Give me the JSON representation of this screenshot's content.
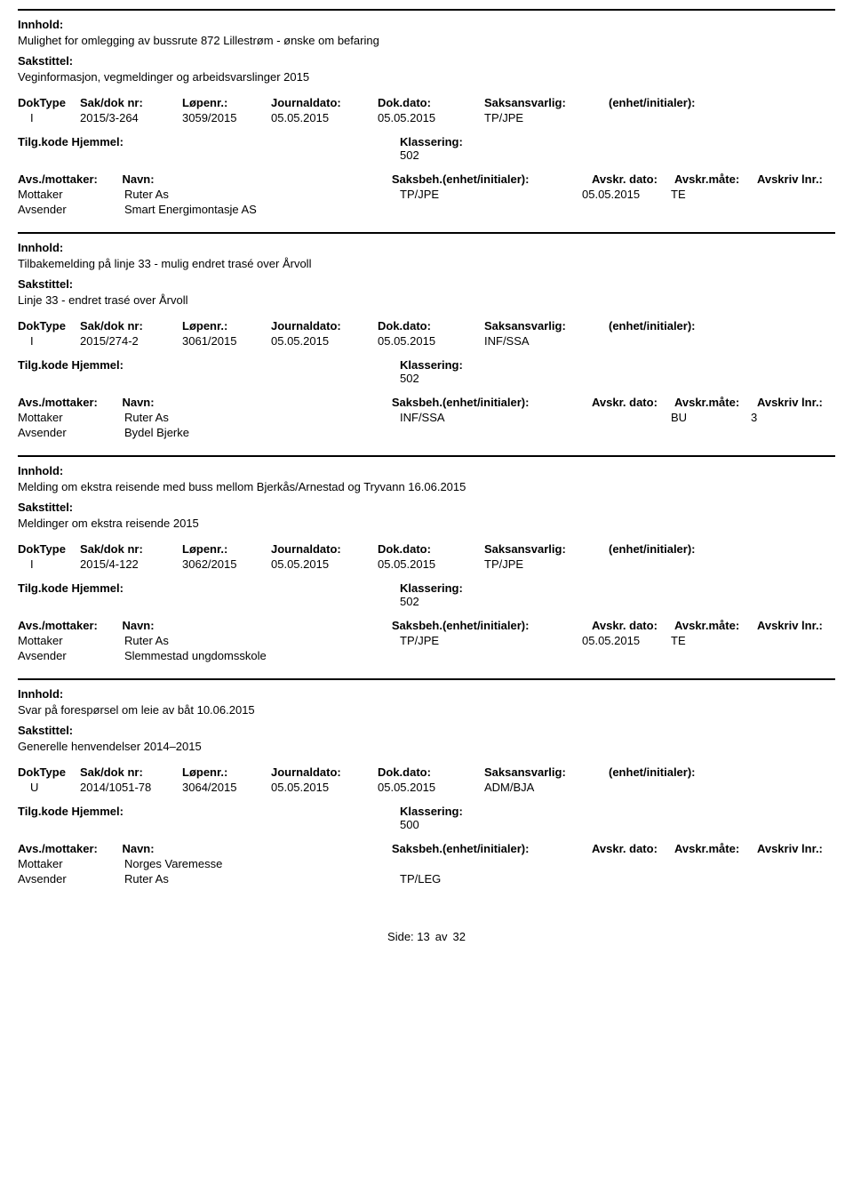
{
  "labels": {
    "innhold": "Innhold:",
    "sakstittel": "Sakstittel:",
    "doktype": "DokType",
    "saknr": "Sak/dok nr:",
    "lopenr": "Løpenr.:",
    "journaldato": "Journaldato:",
    "dokdato": "Dok.dato:",
    "saksansvarlig": "Saksansvarlig:",
    "enhet_init": "(enhet/initialer):",
    "tilgkode": "Tilg.kode",
    "hjemmel": "Hjemmel:",
    "klassering": "Klassering:",
    "avs_mottaker": "Avs./mottaker:",
    "navn": "Navn:",
    "saksbeh": "Saksbeh.(enhet/initialer):",
    "avskr_dato": "Avskr. dato:",
    "avskr_mate": "Avskr.måte:",
    "avskriv_lnr": "Avskriv lnr.:",
    "mottaker": "Mottaker",
    "avsender": "Avsender",
    "side": "Side:",
    "av": "av"
  },
  "records": [
    {
      "innhold": "Mulighet for omlegging av bussrute 872 Lillestrøm - ønske om befaring",
      "sakstittel": "Veginformasjon, vegmeldinger og arbeidsvarslinger 2015",
      "doktype": "I",
      "saknr": "2015/3-264",
      "lopenr": "3059/2015",
      "journaldato": "05.05.2015",
      "dokdato": "05.05.2015",
      "saksansvarlig": "TP/JPE",
      "enhet_init": "",
      "tilgkode": "",
      "hjemmel": "",
      "klassering": "502",
      "parties": [
        {
          "role": "Mottaker",
          "navn": "Ruter As",
          "saksbeh": "TP/JPE",
          "avskr_dato": "05.05.2015",
          "avskr_mate": "TE",
          "avskr_lnr": ""
        },
        {
          "role": "Avsender",
          "navn": "Smart Energimontasje AS",
          "saksbeh": "",
          "avskr_dato": "",
          "avskr_mate": "",
          "avskr_lnr": ""
        }
      ]
    },
    {
      "innhold": "Tilbakemelding på linje 33 - mulig endret trasé over Årvoll",
      "sakstittel": "Linje 33 - endret trasé over Årvoll",
      "doktype": "I",
      "saknr": "2015/274-2",
      "lopenr": "3061/2015",
      "journaldato": "05.05.2015",
      "dokdato": "05.05.2015",
      "saksansvarlig": "INF/SSA",
      "enhet_init": "",
      "tilgkode": "",
      "hjemmel": "",
      "klassering": "502",
      "parties": [
        {
          "role": "Mottaker",
          "navn": "Ruter As",
          "saksbeh": "INF/SSA",
          "avskr_dato": "",
          "avskr_mate": "BU",
          "avskr_lnr": "3"
        },
        {
          "role": "Avsender",
          "navn": "Bydel Bjerke",
          "saksbeh": "",
          "avskr_dato": "",
          "avskr_mate": "",
          "avskr_lnr": ""
        }
      ]
    },
    {
      "innhold": "Melding om ekstra reisende med buss mellom Bjerkås/Arnestad og Tryvann 16.06.2015",
      "sakstittel": "Meldinger om ekstra reisende 2015",
      "doktype": "I",
      "saknr": "2015/4-122",
      "lopenr": "3062/2015",
      "journaldato": "05.05.2015",
      "dokdato": "05.05.2015",
      "saksansvarlig": "TP/JPE",
      "enhet_init": "",
      "tilgkode": "",
      "hjemmel": "",
      "klassering": "502",
      "parties": [
        {
          "role": "Mottaker",
          "navn": "Ruter As",
          "saksbeh": "TP/JPE",
          "avskr_dato": "05.05.2015",
          "avskr_mate": "TE",
          "avskr_lnr": ""
        },
        {
          "role": "Avsender",
          "navn": "Slemmestad ungdomsskole",
          "saksbeh": "",
          "avskr_dato": "",
          "avskr_mate": "",
          "avskr_lnr": ""
        }
      ]
    },
    {
      "innhold": "Svar på forespørsel om leie av båt 10.06.2015",
      "sakstittel": "Generelle henvendelser 2014–2015",
      "doktype": "U",
      "saknr": "2014/1051-78",
      "lopenr": "3064/2015",
      "journaldato": "05.05.2015",
      "dokdato": "05.05.2015",
      "saksansvarlig": "ADM/BJA",
      "enhet_init": "",
      "tilgkode": "",
      "hjemmel": "",
      "klassering": "500",
      "parties": [
        {
          "role": "Mottaker",
          "navn": "Norges Varemesse",
          "saksbeh": "",
          "avskr_dato": "",
          "avskr_mate": "",
          "avskr_lnr": ""
        },
        {
          "role": "Avsender",
          "navn": "Ruter As",
          "saksbeh": "TP/LEG",
          "avskr_dato": "",
          "avskr_mate": "",
          "avskr_lnr": ""
        }
      ]
    }
  ],
  "footer": {
    "page": "13",
    "total": "32"
  }
}
